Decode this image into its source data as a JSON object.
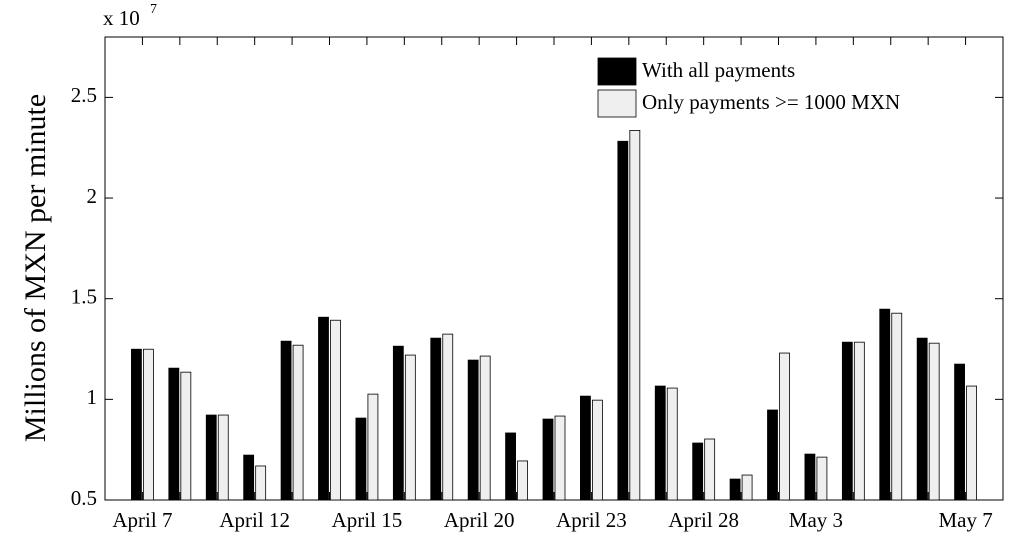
{
  "chart_data": {
    "type": "bar",
    "ylabel": "Millions of MXN per minute",
    "multiplier": {
      "base": "x 10",
      "exponent": "7"
    },
    "categories": [
      "April 7",
      null,
      null,
      "April 12",
      null,
      null,
      "April 15",
      null,
      null,
      "April 20",
      null,
      null,
      "April 23",
      null,
      null,
      "April 28",
      null,
      null,
      "May 3",
      null,
      null,
      null,
      "May 7"
    ],
    "series": [
      {
        "name": "With all payments",
        "color": "#000000",
        "values": [
          1.249,
          1.155,
          0.922,
          0.723,
          1.289,
          1.408,
          0.907,
          1.264,
          1.304,
          1.195,
          0.833,
          0.902,
          1.016,
          2.282,
          1.066,
          0.783,
          0.604,
          0.947,
          0.728,
          1.284,
          1.448,
          1.304,
          1.175
        ]
      },
      {
        "name": "Only payments >= 1000 MXN",
        "color": "#efefef",
        "values": [
          1.249,
          1.135,
          0.922,
          0.669,
          1.269,
          1.393,
          1.026,
          1.22,
          1.324,
          1.215,
          0.694,
          0.917,
          0.996,
          2.336,
          1.056,
          0.803,
          0.624,
          1.23,
          0.713,
          1.284,
          1.428,
          1.279,
          1.066
        ]
      }
    ],
    "ylim": [
      0.5,
      2.8
    ],
    "yticks": [
      0.5,
      1,
      1.5,
      2,
      2.5
    ],
    "legend": "upper right"
  }
}
